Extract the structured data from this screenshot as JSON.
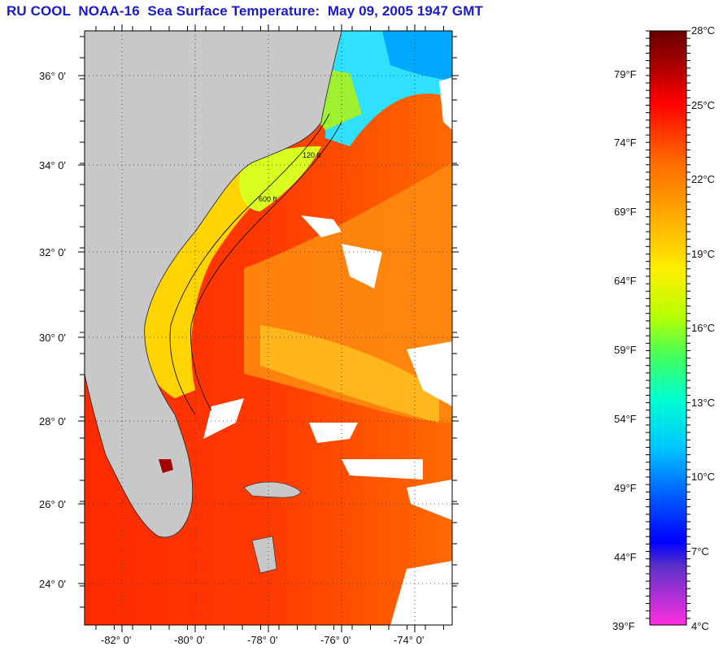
{
  "title": "RU COOL  NOAA-16  Sea Surface Temperature:  May 09, 2005 1947 GMT",
  "map": {
    "lat_labels": [
      "36° 0'",
      "34° 0'",
      "32° 0'",
      "30° 0'",
      "28° 0'",
      "26° 0'",
      "24° 0'"
    ],
    "lon_labels": [
      "-82° 0'",
      "-80° 0'",
      "-78° 0'",
      "-76° 0'",
      "-74° 0'"
    ],
    "contour_labels": [
      "120 ft",
      "600 ft"
    ],
    "colors": {
      "land": "#c8c8c8",
      "cloud": "#ffffff",
      "sea_warm": "#ff1a00",
      "sea_mid": "#ff7a00",
      "sea_cool": "#ffd000",
      "coastal_cold": "#00e0ff"
    }
  },
  "colorbar": {
    "celsius_labels": [
      "28°C",
      "25°C",
      "22°C",
      "19°C",
      "16°C",
      "13°C",
      "10°C",
      "7°C",
      "4°C"
    ],
    "fahrenheit_labels": [
      "79°F",
      "74°F",
      "69°F",
      "64°F",
      "59°F",
      "54°F",
      "49°F",
      "44°F",
      "39°F"
    ],
    "range_celsius": [
      4,
      28
    ]
  }
}
